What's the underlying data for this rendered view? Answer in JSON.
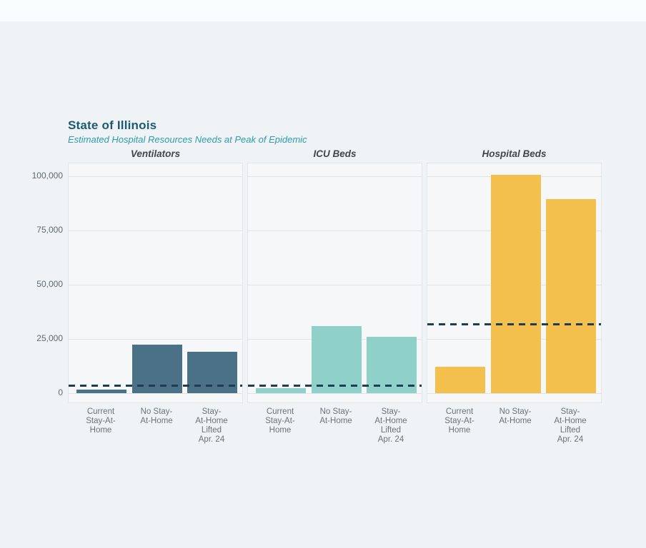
{
  "chart_data": {
    "type": "bar",
    "title": "State of Illinois",
    "subtitle": "Estimated Hospital Resources Needs at Peak of Epidemic",
    "categories": [
      "Current\nStay-At-\nHome",
      "No Stay-\nAt-Home",
      "Stay-\nAt-Home\nLifted\nApr. 24"
    ],
    "y_ticks": [
      0,
      25000,
      50000,
      75000,
      100000
    ],
    "y_tick_labels": [
      "0",
      "25,000",
      "50,000",
      "75,000",
      "100,000"
    ],
    "ylim": [
      0,
      106000
    ],
    "grid": true,
    "legend_position": "none",
    "facets": [
      {
        "name": "Ventilators",
        "color": "#4a7186",
        "values": [
          1700,
          22400,
          19000
        ],
        "dashed_line_value": 3600
      },
      {
        "name": "ICU Beds",
        "color": "#8fd0c9",
        "values": [
          2300,
          31000,
          26100
        ],
        "dashed_line_value": 3600
      },
      {
        "name": "Hospital Beds",
        "color": "#f4c04d",
        "values": [
          12200,
          100800,
          89400
        ],
        "dashed_line_value": 31600
      }
    ]
  },
  "colors": {
    "page_background": "#eff3f6",
    "top_strip": "#fafdfe",
    "panel_background": "#f5f7f9",
    "panel_border": "#e3e6e9",
    "gridline": "#dfe3e6",
    "title": "#1c5a74",
    "subtitle": "#2d9cad",
    "facet_title": "#40474c",
    "axis_text": "#5f6a70",
    "dashed_line": "#1e3c52"
  }
}
